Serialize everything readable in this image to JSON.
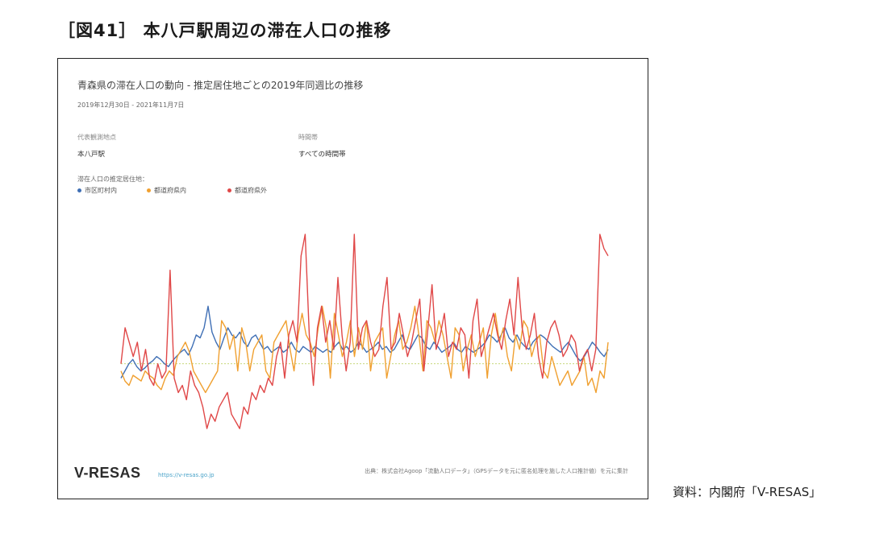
{
  "figure": {
    "title": "［図41］ 本八戸駅周辺の滞在人口の推移",
    "caption": "資料：内閣府「V-RESAS」"
  },
  "panel": {
    "title": "青森県の滞在人口の動向 - 推定居住地ごとの2019年同週比の推移",
    "date_range": "2019年12月30日 - 2021年11月7日",
    "filter_area_label": "代表観測地点",
    "filter_area_value": "本八戸駅",
    "filter_time_label": "時間帯",
    "filter_time_value": "すべての時間帯",
    "legend_title": "滞在人口の推定居住地："
  },
  "footer": {
    "logo": "V-RESAS",
    "url": "https://v-resas.go.jp",
    "source": "出典：株式会社Agoop「流動人口データ」（GPSデータを元に匿名処理を施した人口推計値）を元に集計"
  },
  "colors": {
    "municipality": "#3f6fb5",
    "prefecture": "#f0a030",
    "outside": "#e04848",
    "zero_line": "#c8d87a"
  },
  "chart_data": {
    "type": "line",
    "title": "青森県の滞在人口の動向 - 推定居住地ごとの2019年同週比の推移",
    "xlabel": "",
    "ylabel": "",
    "ylim": [
      -50,
      100
    ],
    "grid": false,
    "legend_position": "top-left",
    "series": [
      {
        "key": "municipality",
        "name": "市区町村内",
        "values": [
          -10,
          -5,
          0,
          3,
          -2,
          -5,
          -3,
          0,
          2,
          5,
          3,
          0,
          -2,
          2,
          5,
          8,
          10,
          6,
          12,
          20,
          18,
          25,
          40,
          22,
          15,
          10,
          18,
          25,
          20,
          18,
          22,
          15,
          12,
          18,
          20,
          15,
          10,
          12,
          8,
          10,
          12,
          8,
          10,
          15,
          10,
          8,
          12,
          10,
          8,
          12,
          10,
          8,
          10,
          8,
          12,
          15,
          10,
          12,
          8,
          10,
          15,
          12,
          8,
          10,
          12,
          15,
          10,
          12,
          8,
          10,
          15,
          20,
          12,
          10,
          15,
          20,
          18,
          12,
          10,
          15,
          12,
          8,
          10,
          12,
          15,
          10,
          8,
          12,
          10,
          8,
          10,
          12,
          15,
          20,
          18,
          15,
          20,
          25,
          18,
          15,
          20,
          15,
          12,
          10,
          15,
          18,
          20,
          18,
          15,
          12,
          10,
          8,
          12,
          15,
          10,
          5,
          2,
          5,
          10,
          15,
          12,
          8,
          5,
          10
        ]
      },
      {
        "key": "prefecture",
        "name": "都道府県内",
        "values": [
          -5,
          -12,
          -15,
          -8,
          -10,
          -12,
          -5,
          -8,
          -10,
          -15,
          -18,
          -10,
          -5,
          -8,
          5,
          10,
          15,
          8,
          -5,
          -10,
          -15,
          -20,
          -15,
          -10,
          -5,
          30,
          25,
          10,
          20,
          -5,
          25,
          15,
          -5,
          10,
          15,
          20,
          -5,
          -10,
          15,
          20,
          25,
          30,
          10,
          -5,
          20,
          35,
          20,
          15,
          5,
          25,
          40,
          25,
          -10,
          35,
          20,
          5,
          15,
          30,
          5,
          25,
          10,
          30,
          -5,
          15,
          20,
          25,
          -10,
          5,
          20,
          30,
          10,
          15,
          25,
          40,
          20,
          -5,
          30,
          25,
          15,
          30,
          20,
          5,
          -10,
          25,
          20,
          -5,
          10,
          20,
          5,
          15,
          25,
          -10,
          20,
          35,
          15,
          25,
          5,
          -5,
          20,
          10,
          30,
          25,
          5,
          15,
          20,
          -5,
          -10,
          5,
          -5,
          -15,
          -10,
          -5,
          -15,
          -10,
          -5,
          5,
          -15,
          -10,
          -20,
          -5,
          -10,
          15
        ]
      },
      {
        "key": "outside",
        "name": "都道府県外",
        "values": [
          0,
          25,
          15,
          5,
          15,
          -5,
          10,
          -10,
          -15,
          0,
          -10,
          -5,
          65,
          -10,
          -20,
          -15,
          -25,
          -5,
          -15,
          -20,
          -30,
          -45,
          -35,
          -40,
          -30,
          -25,
          -20,
          -35,
          -40,
          -45,
          -30,
          -35,
          -20,
          -25,
          -15,
          -20,
          -10,
          -15,
          5,
          15,
          -10,
          20,
          30,
          15,
          75,
          90,
          20,
          -15,
          25,
          40,
          15,
          30,
          10,
          60,
          20,
          -5,
          15,
          90,
          10,
          25,
          30,
          15,
          5,
          10,
          40,
          60,
          10,
          15,
          35,
          20,
          5,
          15,
          30,
          45,
          -5,
          25,
          55,
          10,
          20,
          35,
          5,
          15,
          10,
          25,
          20,
          -10,
          30,
          45,
          5,
          15,
          25,
          35,
          20,
          10,
          30,
          45,
          20,
          60,
          25,
          10,
          20,
          35,
          5,
          -10,
          15,
          25,
          30,
          20,
          5,
          10,
          20,
          15,
          -5,
          5,
          10,
          -5,
          10,
          90,
          80,
          75
        ]
      }
    ]
  }
}
